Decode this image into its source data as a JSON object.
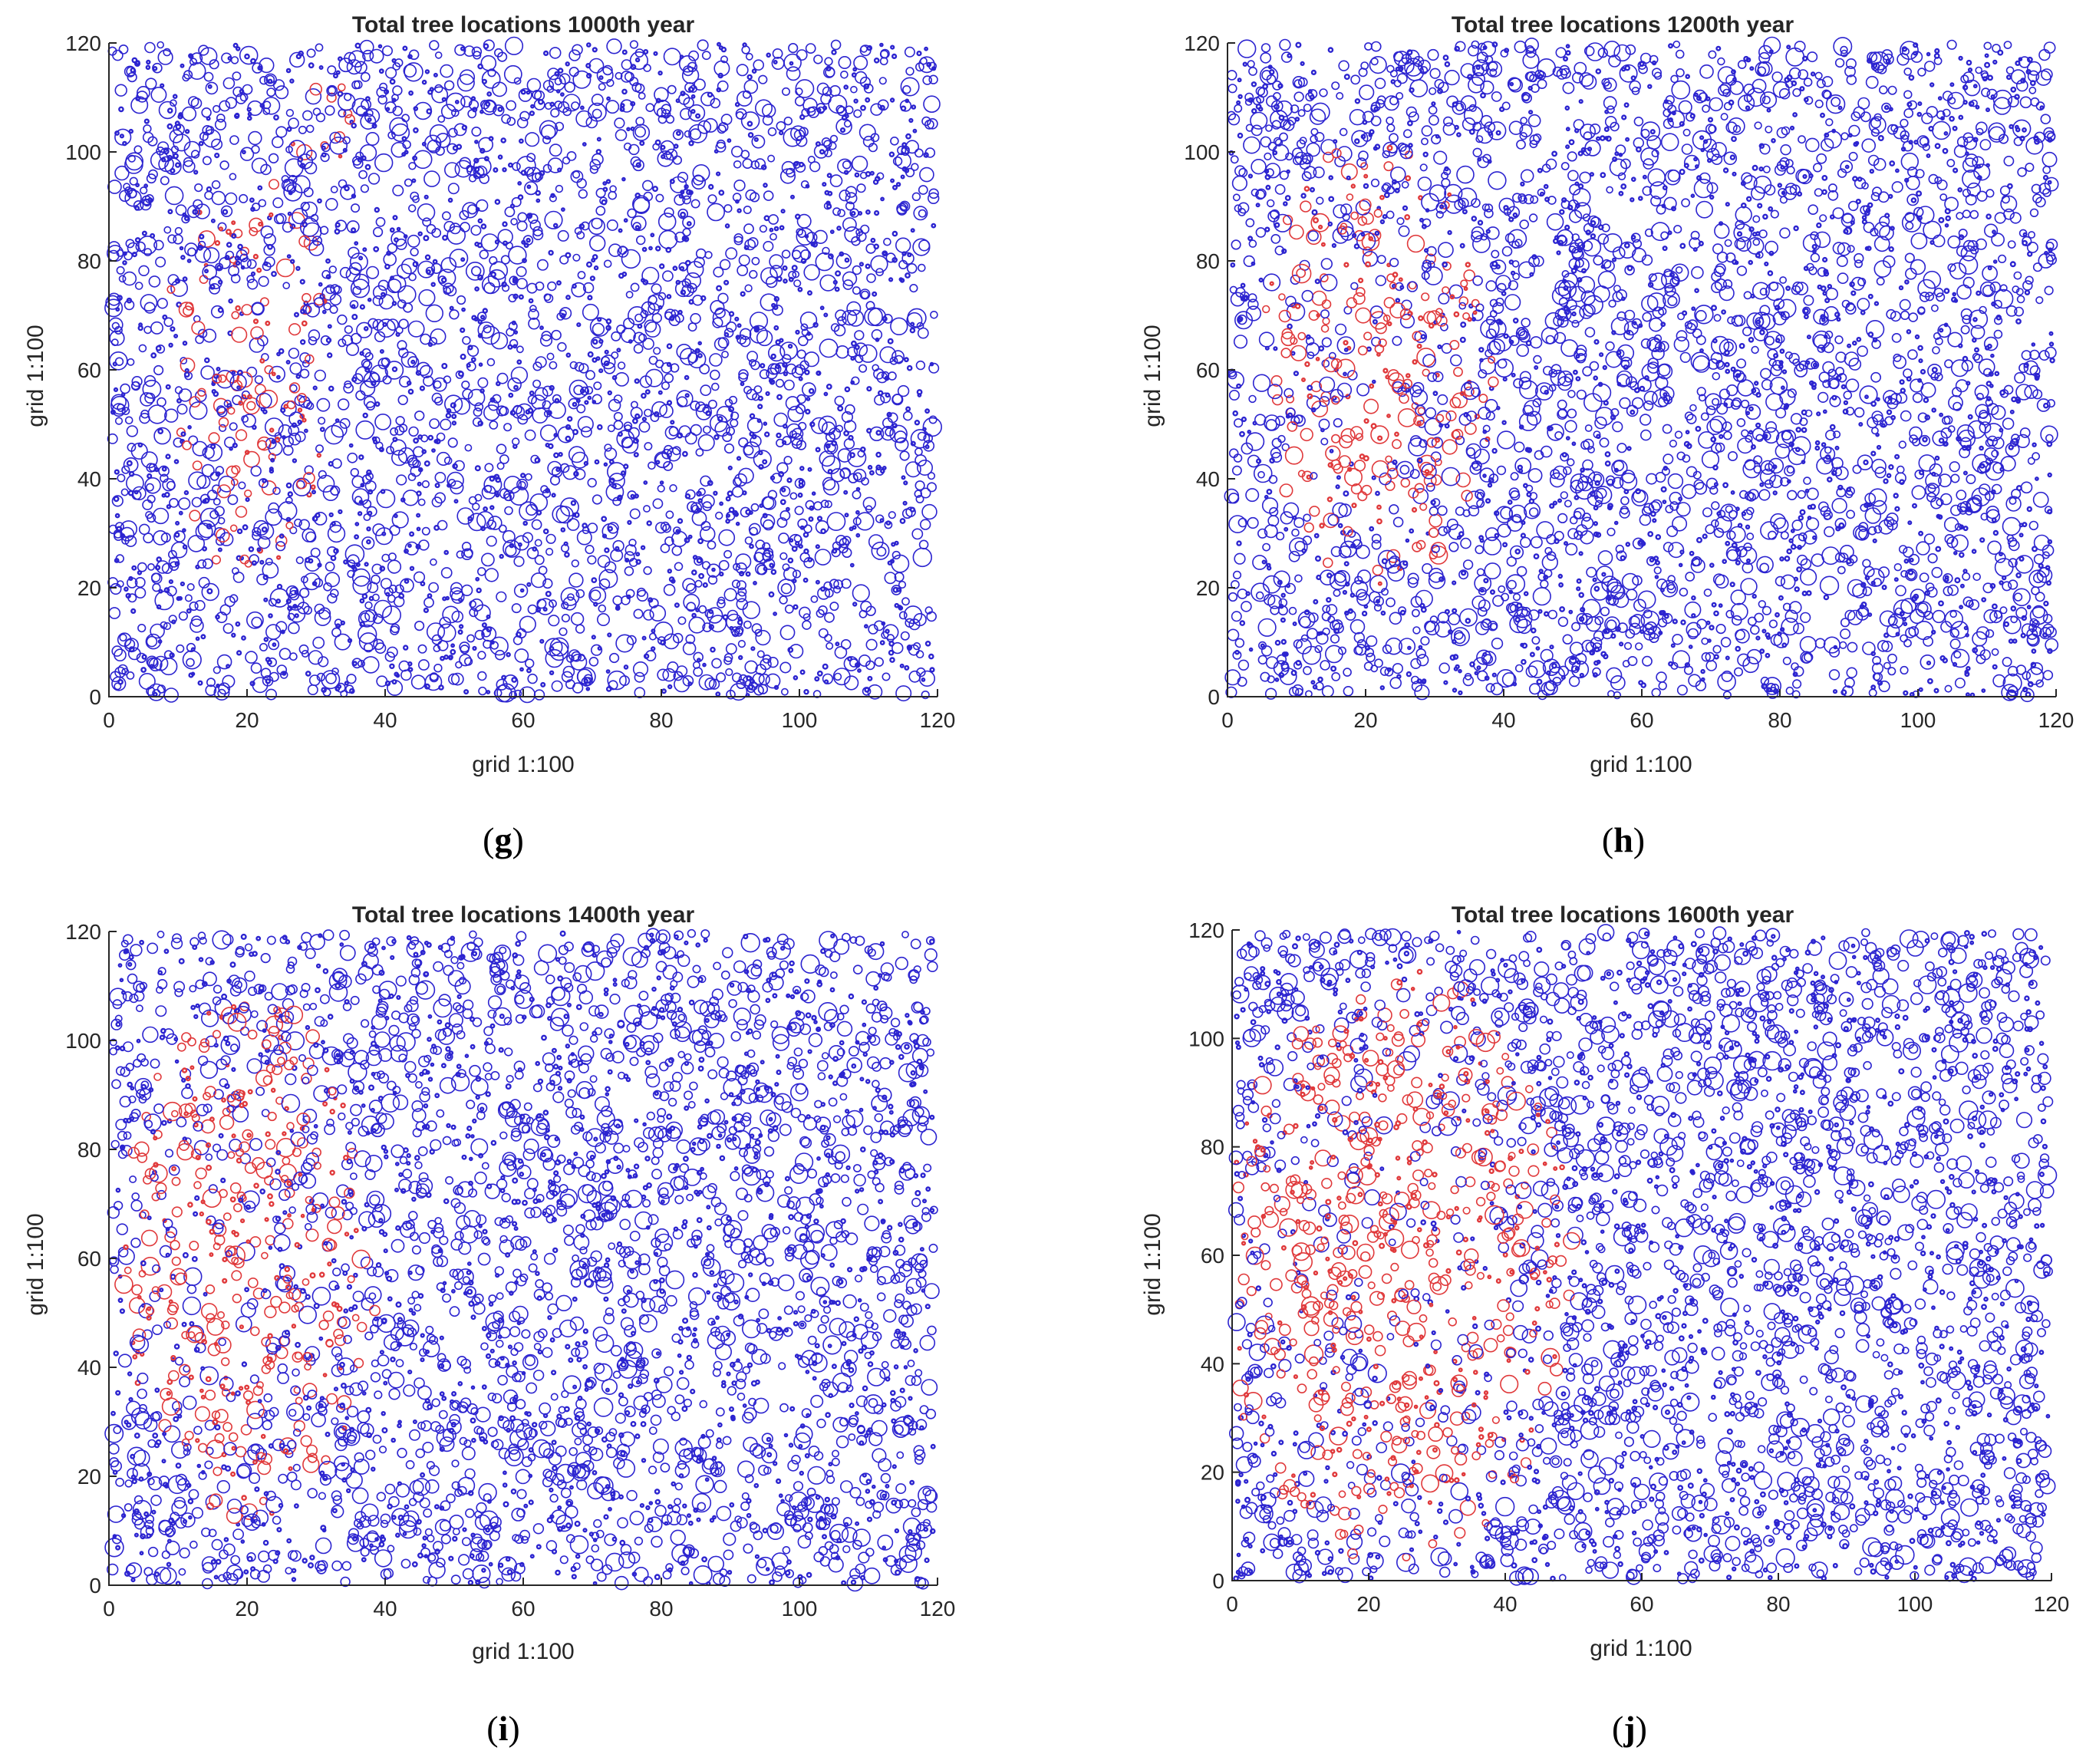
{
  "colors": {
    "red": "#e0393b",
    "blue": "#2c24d0",
    "axis": "#262626"
  },
  "chart_data": [
    {
      "type": "scatter",
      "panel_label": "g",
      "title": "Total tree locations 1000th year",
      "xlabel": "grid 1:100",
      "ylabel": "grid 1:100",
      "xlim": [
        0,
        120
      ],
      "ylim": [
        0,
        120
      ],
      "xticks": [
        0,
        20,
        40,
        60,
        80,
        100,
        120
      ],
      "yticks": [
        0,
        20,
        40,
        60,
        80,
        100,
        120
      ],
      "grid": false,
      "marker": "open-circle",
      "series": [
        {
          "color": "red",
          "regions": [
            {
              "cx": 20,
              "cy": 60,
              "rx": 12,
              "ry": 38,
              "density": 0.45
            },
            {
              "cx": 30,
              "cy": 105,
              "rx": 6,
              "ry": 10,
              "density": 0.25
            }
          ]
        },
        {
          "color": "blue",
          "density": "uniform-dense"
        }
      ]
    },
    {
      "type": "scatter",
      "panel_label": "h",
      "title": "Total tree locations 1200th year",
      "xlabel": "grid 1:100",
      "ylabel": "grid 1:100",
      "xlim": [
        0,
        120
      ],
      "ylim": [
        0,
        120
      ],
      "xticks": [
        0,
        20,
        40,
        60,
        80,
        100,
        120
      ],
      "yticks": [
        0,
        20,
        40,
        60,
        80,
        100,
        120
      ],
      "grid": false,
      "marker": "open-circle",
      "series": [
        {
          "color": "red",
          "regions": [
            {
              "cx": 22,
              "cy": 62,
              "rx": 17,
              "ry": 42,
              "density": 0.6
            }
          ]
        },
        {
          "color": "blue",
          "density": "uniform-dense"
        }
      ]
    },
    {
      "type": "scatter",
      "panel_label": "i",
      "title": "Total tree locations 1400th year",
      "xlabel": "grid 1:100",
      "ylabel": "grid 1:100",
      "xlim": [
        0,
        120
      ],
      "ylim": [
        0,
        120
      ],
      "xticks": [
        0,
        20,
        40,
        60,
        80,
        100,
        120
      ],
      "yticks": [
        0,
        20,
        40,
        60,
        80,
        100,
        120
      ],
      "grid": false,
      "marker": "open-circle",
      "series": [
        {
          "color": "red",
          "regions": [
            {
              "cx": 20,
              "cy": 60,
              "rx": 19,
              "ry": 48,
              "density": 0.7
            }
          ]
        },
        {
          "color": "blue",
          "density": "uniform-dense"
        }
      ]
    },
    {
      "type": "scatter",
      "panel_label": "j",
      "title": "Total tree locations 1600th year",
      "xlabel": "grid 1:100",
      "ylabel": "grid 1:100",
      "xlim": [
        0,
        120
      ],
      "ylim": [
        0,
        120
      ],
      "xticks": [
        0,
        20,
        40,
        60,
        80,
        100,
        120
      ],
      "yticks": [
        0,
        20,
        40,
        60,
        80,
        100,
        120
      ],
      "grid": false,
      "marker": "open-circle",
      "series": [
        {
          "color": "red",
          "regions": [
            {
              "cx": 24,
              "cy": 58,
              "rx": 26,
              "ry": 55,
              "density": 0.8
            }
          ]
        },
        {
          "color": "blue",
          "density": "uniform-dense"
        }
      ]
    }
  ]
}
